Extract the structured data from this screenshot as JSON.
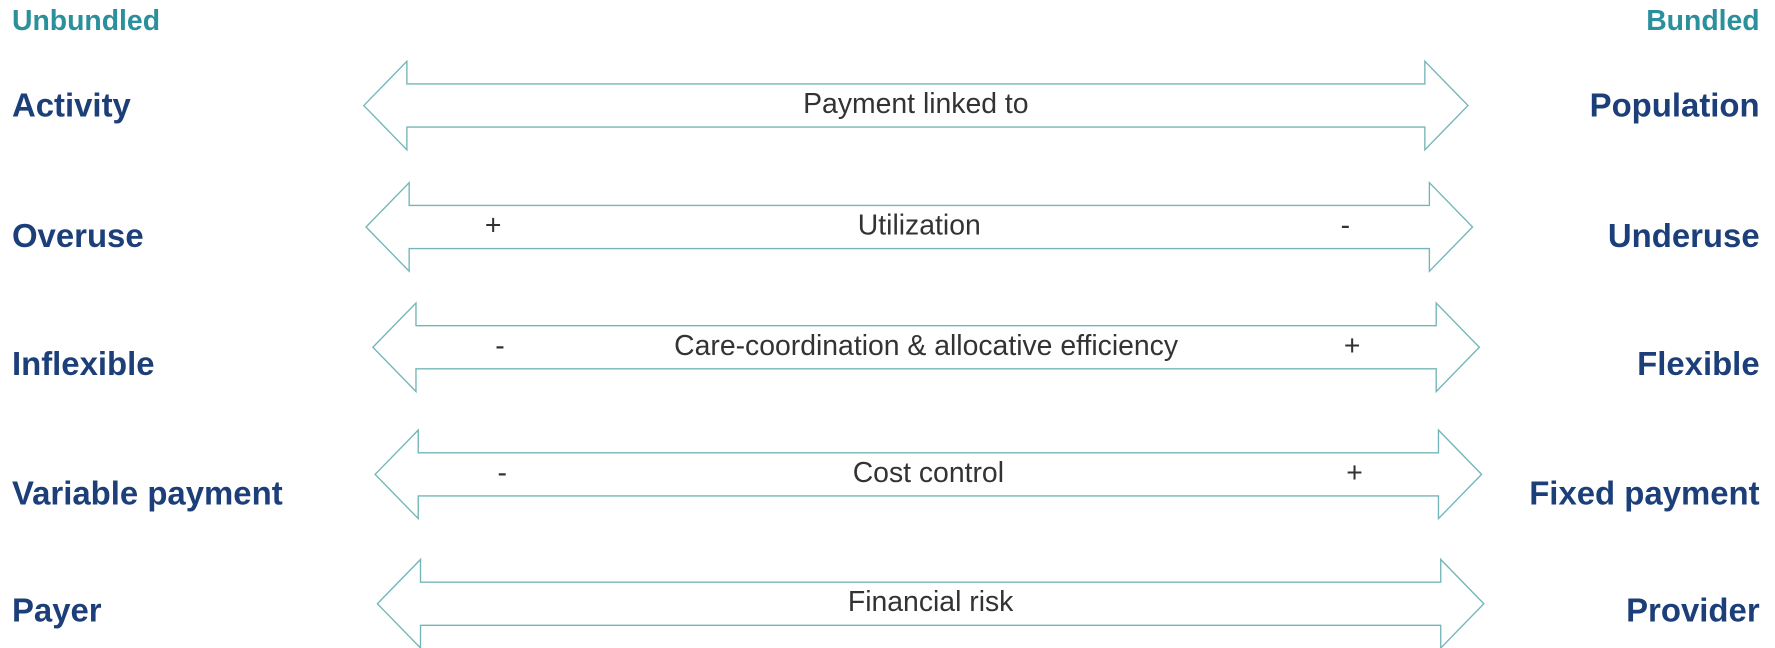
{
  "header": {
    "left": "Unbundled",
    "right": "Bundled"
  },
  "rows": [
    {
      "left": "Activity",
      "right": "Population",
      "label": "Payment linked to"
    },
    {
      "left": "Overuse",
      "right": "Underuse",
      "label": "Utilization",
      "left_sign": "+",
      "right_sign": "-"
    },
    {
      "left": "Inflexible",
      "right": "Flexible",
      "label": "Care-coordination & allocative efficiency",
      "left_sign": "-",
      "right_sign": "+"
    },
    {
      "left": "Variable payment",
      "right": "Fixed payment",
      "label": "Cost control",
      "left_sign": "-",
      "right_sign": "+"
    },
    {
      "left": "Payer",
      "right": "Provider",
      "label": "Financial risk"
    }
  ]
}
